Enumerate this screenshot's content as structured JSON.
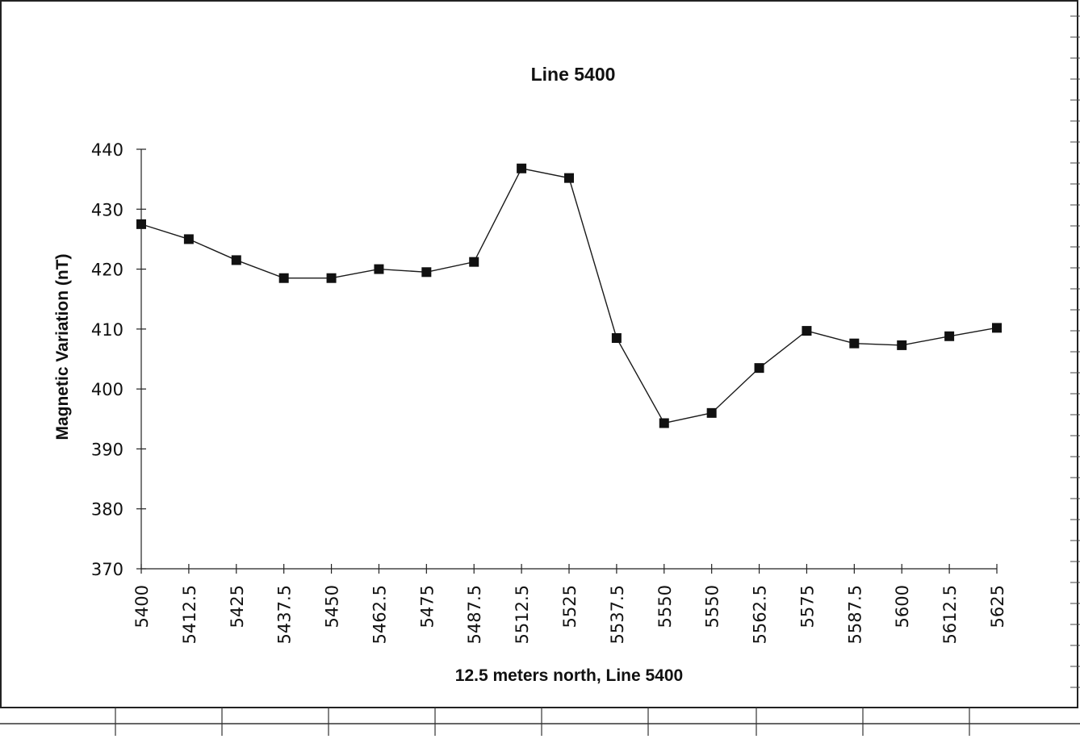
{
  "chart_data": {
    "type": "line",
    "title": "Line 5400",
    "xlabel": "12.5 meters north, Line 5400",
    "ylabel": "Magnetic Variation (nT)",
    "ylim": [
      370,
      440
    ],
    "y_ticks": [
      "370",
      "380",
      "390",
      "400",
      "410",
      "420",
      "430",
      "440"
    ],
    "categories": [
      "5400",
      "5412.5",
      "5425",
      "5437.5",
      "5450",
      "5462.5",
      "5475",
      "5487.5",
      "5512.5",
      "5525",
      "5537.5",
      "5550",
      "5550",
      "5562.5",
      "5575",
      "5587.5",
      "5600",
      "5612.5",
      "5625"
    ],
    "series": [
      {
        "values": [
          427.5,
          425.0,
          421.5,
          418.5,
          418.5,
          420.0,
          419.5,
          421.2,
          436.8,
          435.2,
          408.5,
          394.3,
          396.0,
          403.5,
          409.7,
          407.6,
          407.3,
          408.8,
          410.2
        ]
      }
    ],
    "grid": false,
    "legend": "none",
    "colors": {
      "line": "#1a1a1a",
      "marker": "#111111",
      "frame": "#222222"
    }
  }
}
